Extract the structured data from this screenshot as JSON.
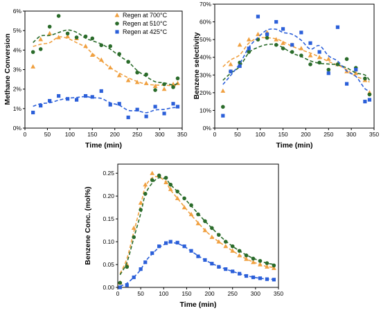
{
  "chart_data": [
    {
      "type": "scatter",
      "title": "",
      "xlabel": "Time (min)",
      "ylabel": "Methane Conversion",
      "xlim": [
        0,
        350
      ],
      "ylim": [
        0,
        6
      ],
      "xticks": [
        0,
        50,
        100,
        150,
        200,
        250,
        300,
        350
      ],
      "yticks": [
        0,
        1,
        2,
        3,
        4,
        5,
        6
      ],
      "ytick_labels": [
        "0%",
        "1%",
        "2%",
        "3%",
        "4%",
        "5%",
        "6%"
      ],
      "grid": false,
      "legend_position": "top-right",
      "series": [
        {
          "name": "Regen at 700°C",
          "color": "#f0a040",
          "marker": "triangle",
          "x": [
            18,
            35,
            55,
            75,
            95,
            115,
            135,
            150,
            170,
            190,
            210,
            230,
            250,
            270,
            290,
            310,
            330,
            340
          ],
          "y": [
            3.15,
            4.55,
            4.85,
            4.65,
            4.7,
            4.6,
            4.2,
            3.75,
            3.5,
            3.1,
            2.7,
            2.45,
            2.35,
            2.3,
            2.15,
            2.0,
            2.25,
            2.3
          ]
        },
        {
          "name": "Regen at 510°C",
          "color": "#2a6b2a",
          "marker": "circle",
          "x": [
            18,
            35,
            55,
            75,
            95,
            115,
            135,
            150,
            170,
            190,
            210,
            230,
            250,
            270,
            290,
            310,
            330,
            340
          ],
          "y": [
            3.9,
            4.05,
            5.2,
            5.75,
            4.85,
            4.65,
            4.7,
            4.6,
            4.25,
            4.2,
            3.8,
            3.4,
            2.85,
            2.75,
            1.95,
            2.25,
            2.1,
            2.55
          ]
        },
        {
          "name": "Regen at 425°C",
          "color": "#2b5fd9",
          "marker": "square",
          "x": [
            18,
            35,
            55,
            75,
            95,
            115,
            135,
            150,
            170,
            190,
            210,
            230,
            250,
            270,
            290,
            310,
            330,
            340
          ],
          "y": [
            0.8,
            1.15,
            1.4,
            1.65,
            1.5,
            1.45,
            1.65,
            1.6,
            1.9,
            1.2,
            1.25,
            0.55,
            0.95,
            0.6,
            1.1,
            0.75,
            1.25,
            1.1
          ]
        }
      ]
    },
    {
      "type": "scatter",
      "title": "",
      "xlabel": "Time (min)",
      "ylabel": "Benzene selectivity",
      "xlim": [
        0,
        350
      ],
      "ylim": [
        0,
        70
      ],
      "xticks": [
        0,
        50,
        100,
        150,
        200,
        250,
        300,
        350
      ],
      "yticks": [
        0,
        10,
        20,
        30,
        40,
        50,
        60,
        70
      ],
      "ytick_labels": [
        "0%",
        "10%",
        "20%",
        "30%",
        "40%",
        "50%",
        "60%",
        "70%"
      ],
      "grid": false,
      "series": [
        {
          "name": "Regen at 700°C",
          "color": "#f0a040",
          "marker": "triangle",
          "x": [
            18,
            35,
            55,
            75,
            95,
            115,
            135,
            150,
            170,
            190,
            210,
            230,
            250,
            270,
            290,
            310,
            330,
            340
          ],
          "y": [
            21,
            36,
            47,
            50,
            53,
            54,
            50,
            48,
            47,
            45,
            41,
            40,
            39,
            36,
            32,
            31,
            27,
            20
          ]
        },
        {
          "name": "Regen at 510°C",
          "color": "#2a6b2a",
          "marker": "circle",
          "x": [
            18,
            35,
            55,
            75,
            95,
            115,
            135,
            150,
            170,
            190,
            210,
            230,
            250,
            270,
            290,
            310,
            330,
            340
          ],
          "y": [
            12,
            32,
            37,
            43,
            50,
            51,
            47,
            45,
            43,
            41,
            36,
            37,
            33,
            36,
            39,
            34,
            28,
            19
          ]
        },
        {
          "name": "Regen at 425°C",
          "color": "#2b5fd9",
          "marker": "square",
          "x": [
            18,
            35,
            55,
            75,
            95,
            115,
            135,
            150,
            170,
            190,
            210,
            230,
            250,
            270,
            290,
            310,
            330,
            340
          ],
          "y": [
            7,
            32,
            35,
            45,
            63,
            53,
            60,
            56,
            47,
            54,
            48,
            43,
            31,
            57,
            25,
            33,
            15,
            16
          ]
        }
      ]
    },
    {
      "type": "scatter",
      "title": "",
      "xlabel": "Time (min)",
      "ylabel": "Benzene Conc. (mol%)",
      "xlim": [
        0,
        350
      ],
      "ylim": [
        0,
        0.27
      ],
      "xticks": [
        0,
        50,
        100,
        150,
        200,
        250,
        300,
        350
      ],
      "yticks": [
        0,
        0.05,
        0.1,
        0.15,
        0.2,
        0.25
      ],
      "ytick_labels": [
        "0.00",
        "0.05",
        "0.10",
        "0.15",
        "0.20",
        "0.25"
      ],
      "grid": false,
      "series": [
        {
          "name": "Regen at 700°C",
          "color": "#f0a040",
          "marker": "triangle",
          "x": [
            5,
            20,
            35,
            50,
            60,
            75,
            90,
            105,
            115,
            130,
            145,
            160,
            175,
            190,
            205,
            220,
            235,
            250,
            265,
            280,
            295,
            310,
            325,
            340
          ],
          "y": [
            0.01,
            0.05,
            0.13,
            0.185,
            0.225,
            0.25,
            0.245,
            0.23,
            0.215,
            0.195,
            0.175,
            0.16,
            0.14,
            0.125,
            0.11,
            0.1,
            0.09,
            0.08,
            0.07,
            0.062,
            0.055,
            0.05,
            0.045,
            0.042
          ]
        },
        {
          "name": "Regen at 510°C",
          "color": "#2a6b2a",
          "marker": "circle",
          "x": [
            5,
            20,
            35,
            50,
            60,
            75,
            90,
            105,
            115,
            130,
            145,
            160,
            175,
            190,
            205,
            220,
            235,
            250,
            265,
            280,
            295,
            310,
            325,
            340
          ],
          "y": [
            0.01,
            0.045,
            0.11,
            0.17,
            0.205,
            0.235,
            0.245,
            0.24,
            0.225,
            0.21,
            0.195,
            0.18,
            0.16,
            0.145,
            0.13,
            0.115,
            0.1,
            0.09,
            0.08,
            0.07,
            0.063,
            0.058,
            0.053,
            0.048
          ]
        },
        {
          "name": "Regen at 425°C",
          "color": "#2b5fd9",
          "marker": "square",
          "x": [
            5,
            20,
            35,
            50,
            60,
            75,
            90,
            105,
            115,
            130,
            145,
            160,
            175,
            190,
            205,
            220,
            235,
            250,
            265,
            280,
            295,
            310,
            325,
            340
          ],
          "y": [
            0.0,
            0.005,
            0.022,
            0.04,
            0.055,
            0.075,
            0.09,
            0.097,
            0.1,
            0.098,
            0.09,
            0.08,
            0.068,
            0.06,
            0.052,
            0.045,
            0.04,
            0.035,
            0.03,
            0.025,
            0.022,
            0.02,
            0.018,
            0.017
          ]
        }
      ]
    }
  ]
}
